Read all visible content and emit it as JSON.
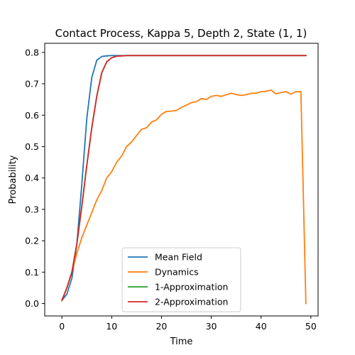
{
  "chart_data": {
    "type": "line",
    "title": "Contact Process, Kappa 5, Depth 2, State (1, 1)",
    "xlabel": "Time",
    "ylabel": "Probability",
    "xlim": [
      -3.45,
      51.45
    ],
    "ylim": [
      -0.0395,
      0.829
    ],
    "xticks": [
      0,
      10,
      20,
      30,
      40,
      50
    ],
    "yticks": [
      0.0,
      0.1,
      0.2,
      0.3,
      0.4,
      0.5,
      0.6,
      0.7,
      0.8
    ],
    "ytick_labels": [
      "0.0",
      "0.1",
      "0.2",
      "0.3",
      "0.4",
      "0.5",
      "0.6",
      "0.7",
      "0.8"
    ],
    "grid": false,
    "legend_position": "lower-center",
    "series": [
      {
        "name": "Mean Field",
        "color": "#1f77b4",
        "x": [
          0,
          1,
          2,
          3,
          4,
          5,
          6,
          7,
          8,
          9,
          10,
          11,
          12,
          13,
          14,
          15,
          16,
          17,
          18,
          19,
          20,
          21,
          22,
          23,
          24,
          25,
          26,
          27,
          28,
          29,
          30,
          31,
          32,
          33,
          34,
          35,
          36,
          37,
          38,
          39,
          40,
          41,
          42,
          43,
          44,
          45,
          46,
          47,
          48,
          49
        ],
        "y": [
          0.01,
          0.03,
          0.08,
          0.19,
          0.38,
          0.59,
          0.72,
          0.775,
          0.787,
          0.789,
          0.79,
          0.79,
          0.79,
          0.79,
          0.79,
          0.79,
          0.79,
          0.79,
          0.79,
          0.79,
          0.79,
          0.79,
          0.79,
          0.79,
          0.79,
          0.79,
          0.79,
          0.79,
          0.79,
          0.79,
          0.79,
          0.79,
          0.79,
          0.79,
          0.79,
          0.79,
          0.79,
          0.79,
          0.79,
          0.79,
          0.79,
          0.79,
          0.79,
          0.79,
          0.79,
          0.79,
          0.79,
          0.79,
          0.79,
          0.79
        ]
      },
      {
        "name": "Dynamics",
        "color": "#ff7f0e",
        "x": [
          0,
          1,
          2,
          3,
          4,
          5,
          6,
          7,
          8,
          9,
          10,
          11,
          12,
          13,
          14,
          15,
          16,
          17,
          18,
          19,
          20,
          21,
          22,
          23,
          24,
          25,
          26,
          27,
          28,
          29,
          30,
          31,
          32,
          33,
          34,
          35,
          36,
          37,
          38,
          39,
          40,
          41,
          42,
          43,
          44,
          45,
          46,
          47,
          48,
          49
        ],
        "y": [
          0.01,
          0.05,
          0.1,
          0.16,
          0.21,
          0.25,
          0.29,
          0.33,
          0.36,
          0.4,
          0.42,
          0.45,
          0.47,
          0.5,
          0.515,
          0.535,
          0.555,
          0.56,
          0.578,
          0.585,
          0.603,
          0.612,
          0.613,
          0.615,
          0.625,
          0.632,
          0.64,
          0.643,
          0.653,
          0.65,
          0.66,
          0.663,
          0.66,
          0.665,
          0.67,
          0.666,
          0.663,
          0.665,
          0.67,
          0.67,
          0.675,
          0.676,
          0.68,
          0.668,
          0.672,
          0.675,
          0.667,
          0.675,
          0.675,
          0.0
        ]
      },
      {
        "name": "1-Approximation",
        "color": "#2ca02c",
        "x": [
          0,
          1,
          2,
          3,
          4,
          5,
          6,
          7,
          8,
          9,
          10,
          11,
          12,
          13,
          14,
          15,
          16,
          17,
          18,
          19,
          20,
          21,
          22,
          23,
          24,
          25,
          26,
          27,
          28,
          29,
          30,
          31,
          32,
          33,
          34,
          35,
          36,
          37,
          38,
          39,
          40,
          41,
          42,
          43,
          44,
          45,
          46,
          47,
          48,
          49
        ],
        "y": [
          0.01,
          0.05,
          0.1,
          0.19,
          0.31,
          0.44,
          0.56,
          0.66,
          0.735,
          0.77,
          0.783,
          0.788,
          0.789,
          0.79,
          0.79,
          0.79,
          0.79,
          0.79,
          0.79,
          0.79,
          0.79,
          0.79,
          0.79,
          0.79,
          0.79,
          0.79,
          0.79,
          0.79,
          0.79,
          0.79,
          0.79,
          0.79,
          0.79,
          0.79,
          0.79,
          0.79,
          0.79,
          0.79,
          0.79,
          0.79,
          0.79,
          0.79,
          0.79,
          0.79,
          0.79,
          0.79,
          0.79,
          0.79,
          0.79,
          0.79
        ]
      },
      {
        "name": "2-Approximation",
        "color": "#d62728",
        "x": [
          0,
          1,
          2,
          3,
          4,
          5,
          6,
          7,
          8,
          9,
          10,
          11,
          12,
          13,
          14,
          15,
          16,
          17,
          18,
          19,
          20,
          21,
          22,
          23,
          24,
          25,
          26,
          27,
          28,
          29,
          30,
          31,
          32,
          33,
          34,
          35,
          36,
          37,
          38,
          39,
          40,
          41,
          42,
          43,
          44,
          45,
          46,
          47,
          48,
          49
        ],
        "y": [
          0.01,
          0.05,
          0.1,
          0.19,
          0.31,
          0.44,
          0.56,
          0.66,
          0.735,
          0.77,
          0.783,
          0.788,
          0.789,
          0.79,
          0.79,
          0.79,
          0.79,
          0.79,
          0.79,
          0.79,
          0.79,
          0.79,
          0.79,
          0.79,
          0.79,
          0.79,
          0.79,
          0.79,
          0.79,
          0.79,
          0.79,
          0.79,
          0.79,
          0.79,
          0.79,
          0.79,
          0.79,
          0.79,
          0.79,
          0.79,
          0.79,
          0.79,
          0.79,
          0.79,
          0.79,
          0.79,
          0.79,
          0.79,
          0.79,
          0.79
        ]
      }
    ]
  }
}
